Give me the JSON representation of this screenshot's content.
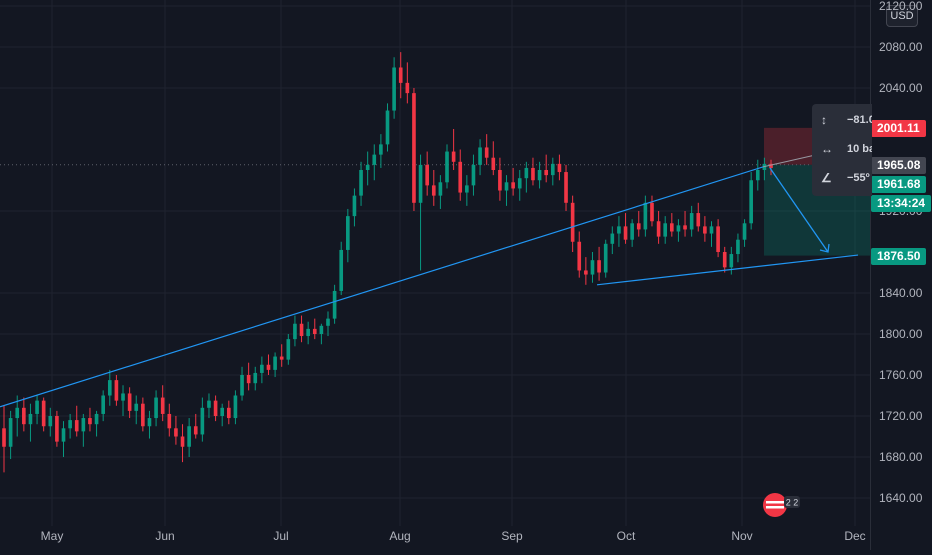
{
  "chart_data": {
    "type": "candlestick",
    "currency": "USD",
    "y_ticks": [
      2120,
      2080,
      2040,
      1920,
      1840,
      1800,
      1760,
      1720,
      1680,
      1640
    ],
    "y_tick_labels": [
      "2120.00",
      "2080.00",
      "2040.00",
      "1920.00",
      "1840.00",
      "1800.00",
      "1760.00",
      "1720.00",
      "1680.00",
      "1640.00"
    ],
    "x_ticks": [
      "May",
      "Jun",
      "Jul",
      "Aug",
      "Sep",
      "Oct",
      "Nov",
      "Dec"
    ],
    "ylim": [
      1620,
      2128
    ],
    "candles": [
      {
        "o": 1708,
        "h": 1730,
        "l": 1665,
        "c": 1690
      },
      {
        "o": 1690,
        "h": 1725,
        "l": 1678,
        "c": 1718
      },
      {
        "o": 1718,
        "h": 1740,
        "l": 1700,
        "c": 1728
      },
      {
        "o": 1728,
        "h": 1738,
        "l": 1705,
        "c": 1712
      },
      {
        "o": 1712,
        "h": 1732,
        "l": 1695,
        "c": 1722
      },
      {
        "o": 1722,
        "h": 1740,
        "l": 1712,
        "c": 1735
      },
      {
        "o": 1735,
        "h": 1738,
        "l": 1705,
        "c": 1710
      },
      {
        "o": 1710,
        "h": 1728,
        "l": 1700,
        "c": 1720
      },
      {
        "o": 1720,
        "h": 1725,
        "l": 1690,
        "c": 1695
      },
      {
        "o": 1695,
        "h": 1715,
        "l": 1680,
        "c": 1708
      },
      {
        "o": 1708,
        "h": 1722,
        "l": 1698,
        "c": 1716
      },
      {
        "o": 1716,
        "h": 1730,
        "l": 1700,
        "c": 1705
      },
      {
        "o": 1705,
        "h": 1722,
        "l": 1690,
        "c": 1718
      },
      {
        "o": 1718,
        "h": 1728,
        "l": 1705,
        "c": 1712
      },
      {
        "o": 1712,
        "h": 1725,
        "l": 1700,
        "c": 1722
      },
      {
        "o": 1722,
        "h": 1745,
        "l": 1715,
        "c": 1740
      },
      {
        "o": 1740,
        "h": 1765,
        "l": 1730,
        "c": 1755
      },
      {
        "o": 1755,
        "h": 1760,
        "l": 1730,
        "c": 1735
      },
      {
        "o": 1735,
        "h": 1750,
        "l": 1720,
        "c": 1742
      },
      {
        "o": 1742,
        "h": 1748,
        "l": 1718,
        "c": 1725
      },
      {
        "o": 1725,
        "h": 1740,
        "l": 1712,
        "c": 1732
      },
      {
        "o": 1732,
        "h": 1738,
        "l": 1705,
        "c": 1710
      },
      {
        "o": 1710,
        "h": 1725,
        "l": 1698,
        "c": 1718
      },
      {
        "o": 1718,
        "h": 1745,
        "l": 1710,
        "c": 1738
      },
      {
        "o": 1738,
        "h": 1750,
        "l": 1715,
        "c": 1722
      },
      {
        "o": 1722,
        "h": 1732,
        "l": 1700,
        "c": 1708
      },
      {
        "o": 1708,
        "h": 1720,
        "l": 1692,
        "c": 1700
      },
      {
        "o": 1700,
        "h": 1712,
        "l": 1675,
        "c": 1690
      },
      {
        "o": 1690,
        "h": 1718,
        "l": 1680,
        "c": 1710
      },
      {
        "o": 1710,
        "h": 1722,
        "l": 1698,
        "c": 1702
      },
      {
        "o": 1702,
        "h": 1738,
        "l": 1695,
        "c": 1728
      },
      {
        "o": 1728,
        "h": 1742,
        "l": 1718,
        "c": 1735
      },
      {
        "o": 1735,
        "h": 1740,
        "l": 1715,
        "c": 1720
      },
      {
        "o": 1720,
        "h": 1732,
        "l": 1710,
        "c": 1728
      },
      {
        "o": 1728,
        "h": 1735,
        "l": 1712,
        "c": 1718
      },
      {
        "o": 1718,
        "h": 1745,
        "l": 1712,
        "c": 1740
      },
      {
        "o": 1740,
        "h": 1768,
        "l": 1735,
        "c": 1760
      },
      {
        "o": 1760,
        "h": 1772,
        "l": 1745,
        "c": 1752
      },
      {
        "o": 1752,
        "h": 1768,
        "l": 1745,
        "c": 1762
      },
      {
        "o": 1762,
        "h": 1778,
        "l": 1752,
        "c": 1770
      },
      {
        "o": 1770,
        "h": 1780,
        "l": 1760,
        "c": 1765
      },
      {
        "o": 1765,
        "h": 1782,
        "l": 1758,
        "c": 1778
      },
      {
        "o": 1778,
        "h": 1790,
        "l": 1768,
        "c": 1775
      },
      {
        "o": 1775,
        "h": 1800,
        "l": 1770,
        "c": 1795
      },
      {
        "o": 1795,
        "h": 1818,
        "l": 1788,
        "c": 1810
      },
      {
        "o": 1810,
        "h": 1818,
        "l": 1792,
        "c": 1798
      },
      {
        "o": 1798,
        "h": 1812,
        "l": 1790,
        "c": 1805
      },
      {
        "o": 1805,
        "h": 1815,
        "l": 1795,
        "c": 1800
      },
      {
        "o": 1800,
        "h": 1810,
        "l": 1790,
        "c": 1808
      },
      {
        "o": 1808,
        "h": 1822,
        "l": 1798,
        "c": 1815
      },
      {
        "o": 1815,
        "h": 1848,
        "l": 1810,
        "c": 1842
      },
      {
        "o": 1842,
        "h": 1890,
        "l": 1838,
        "c": 1882
      },
      {
        "o": 1882,
        "h": 1922,
        "l": 1870,
        "c": 1915
      },
      {
        "o": 1915,
        "h": 1942,
        "l": 1905,
        "c": 1935
      },
      {
        "o": 1935,
        "h": 1968,
        "l": 1925,
        "c": 1960
      },
      {
        "o": 1960,
        "h": 1978,
        "l": 1945,
        "c": 1965
      },
      {
        "o": 1965,
        "h": 1985,
        "l": 1950,
        "c": 1975
      },
      {
        "o": 1975,
        "h": 1995,
        "l": 1962,
        "c": 1985
      },
      {
        "o": 1985,
        "h": 2025,
        "l": 1978,
        "c": 2018
      },
      {
        "o": 2018,
        "h": 2070,
        "l": 2010,
        "c": 2060
      },
      {
        "o": 2060,
        "h": 2075,
        "l": 2030,
        "c": 2045
      },
      {
        "o": 2045,
        "h": 2065,
        "l": 2025,
        "c": 2035
      },
      {
        "o": 2035,
        "h": 2040,
        "l": 1920,
        "c": 1928
      },
      {
        "o": 1928,
        "h": 1975,
        "l": 1862,
        "c": 1965
      },
      {
        "o": 1965,
        "h": 1978,
        "l": 1935,
        "c": 1945
      },
      {
        "o": 1945,
        "h": 1960,
        "l": 1925,
        "c": 1935
      },
      {
        "o": 1935,
        "h": 1955,
        "l": 1922,
        "c": 1948
      },
      {
        "o": 1948,
        "h": 1985,
        "l": 1942,
        "c": 1978
      },
      {
        "o": 1978,
        "h": 2000,
        "l": 1960,
        "c": 1968
      },
      {
        "o": 1968,
        "h": 1980,
        "l": 1930,
        "c": 1938
      },
      {
        "o": 1938,
        "h": 1955,
        "l": 1925,
        "c": 1945
      },
      {
        "o": 1945,
        "h": 1975,
        "l": 1935,
        "c": 1965
      },
      {
        "o": 1965,
        "h": 1990,
        "l": 1955,
        "c": 1982
      },
      {
        "o": 1982,
        "h": 1995,
        "l": 1965,
        "c": 1972
      },
      {
        "o": 1972,
        "h": 1988,
        "l": 1955,
        "c": 1960
      },
      {
        "o": 1960,
        "h": 1972,
        "l": 1930,
        "c": 1940
      },
      {
        "o": 1940,
        "h": 1955,
        "l": 1925,
        "c": 1948
      },
      {
        "o": 1948,
        "h": 1962,
        "l": 1935,
        "c": 1942
      },
      {
        "o": 1942,
        "h": 1960,
        "l": 1930,
        "c": 1952
      },
      {
        "o": 1952,
        "h": 1968,
        "l": 1938,
        "c": 1962
      },
      {
        "o": 1962,
        "h": 1972,
        "l": 1945,
        "c": 1950
      },
      {
        "o": 1950,
        "h": 1968,
        "l": 1942,
        "c": 1960
      },
      {
        "o": 1960,
        "h": 1975,
        "l": 1948,
        "c": 1955
      },
      {
        "o": 1955,
        "h": 1972,
        "l": 1945,
        "c": 1966
      },
      {
        "o": 1966,
        "h": 1975,
        "l": 1950,
        "c": 1958
      },
      {
        "o": 1958,
        "h": 1965,
        "l": 1920,
        "c": 1928
      },
      {
        "o": 1928,
        "h": 1935,
        "l": 1880,
        "c": 1890
      },
      {
        "o": 1890,
        "h": 1900,
        "l": 1855,
        "c": 1862
      },
      {
        "o": 1862,
        "h": 1875,
        "l": 1848,
        "c": 1858
      },
      {
        "o": 1858,
        "h": 1880,
        "l": 1850,
        "c": 1872
      },
      {
        "o": 1872,
        "h": 1885,
        "l": 1852,
        "c": 1860
      },
      {
        "o": 1860,
        "h": 1892,
        "l": 1855,
        "c": 1888
      },
      {
        "o": 1888,
        "h": 1905,
        "l": 1878,
        "c": 1898
      },
      {
        "o": 1898,
        "h": 1915,
        "l": 1885,
        "c": 1905
      },
      {
        "o": 1905,
        "h": 1918,
        "l": 1888,
        "c": 1892
      },
      {
        "o": 1892,
        "h": 1912,
        "l": 1885,
        "c": 1908
      },
      {
        "o": 1908,
        "h": 1920,
        "l": 1895,
        "c": 1902
      },
      {
        "o": 1902,
        "h": 1935,
        "l": 1895,
        "c": 1928
      },
      {
        "o": 1928,
        "h": 1935,
        "l": 1905,
        "c": 1910
      },
      {
        "o": 1910,
        "h": 1920,
        "l": 1888,
        "c": 1895
      },
      {
        "o": 1895,
        "h": 1915,
        "l": 1888,
        "c": 1908
      },
      {
        "o": 1908,
        "h": 1918,
        "l": 1895,
        "c": 1900
      },
      {
        "o": 1900,
        "h": 1912,
        "l": 1890,
        "c": 1906
      },
      {
        "o": 1906,
        "h": 1920,
        "l": 1895,
        "c": 1902
      },
      {
        "o": 1902,
        "h": 1925,
        "l": 1895,
        "c": 1918
      },
      {
        "o": 1918,
        "h": 1928,
        "l": 1900,
        "c": 1905
      },
      {
        "o": 1905,
        "h": 1915,
        "l": 1890,
        "c": 1898
      },
      {
        "o": 1898,
        "h": 1910,
        "l": 1885,
        "c": 1905
      },
      {
        "o": 1905,
        "h": 1912,
        "l": 1875,
        "c": 1880
      },
      {
        "o": 1880,
        "h": 1885,
        "l": 1860,
        "c": 1865
      },
      {
        "o": 1865,
        "h": 1885,
        "l": 1858,
        "c": 1878
      },
      {
        "o": 1878,
        "h": 1898,
        "l": 1870,
        "c": 1892
      },
      {
        "o": 1892,
        "h": 1912,
        "l": 1885,
        "c": 1908
      },
      {
        "o": 1908,
        "h": 1958,
        "l": 1902,
        "c": 1950
      },
      {
        "o": 1950,
        "h": 1970,
        "l": 1940,
        "c": 1960
      },
      {
        "o": 1960,
        "h": 1972,
        "l": 1950,
        "c": 1966
      },
      {
        "o": 1966,
        "h": 1970,
        "l": 1955,
        "c": 1962
      }
    ],
    "trendlines": [
      {
        "x1": 0,
        "y1": 1729,
        "x2": 763,
        "y2": 1963
      },
      {
        "x1": 597,
        "y1": 1848,
        "x2": 858,
        "y2": 1877
      }
    ],
    "position": {
      "entry": 1965.08,
      "stop": 2001.11,
      "target": 1876.5
    },
    "price_labels": {
      "stop": "2001.11",
      "entry": "1965.08",
      "last": "1961.68",
      "countdown": "13:34:24",
      "target": "1876.50"
    },
    "label_colors": {
      "stop": "#f23645",
      "entry": "#434651",
      "last": "#089981",
      "countdown": "#089981",
      "target": "#089981"
    },
    "colors": {
      "up": "#089981",
      "down": "#f23645",
      "trendline": "#2196f3",
      "grid": "#1f2330",
      "text": "#b2b5be"
    }
  },
  "measure_tooltip": {
    "change": "−81.0",
    "bars": "10 ba",
    "angle": "−55º"
  },
  "news_icon": {
    "label": "2 2"
  }
}
